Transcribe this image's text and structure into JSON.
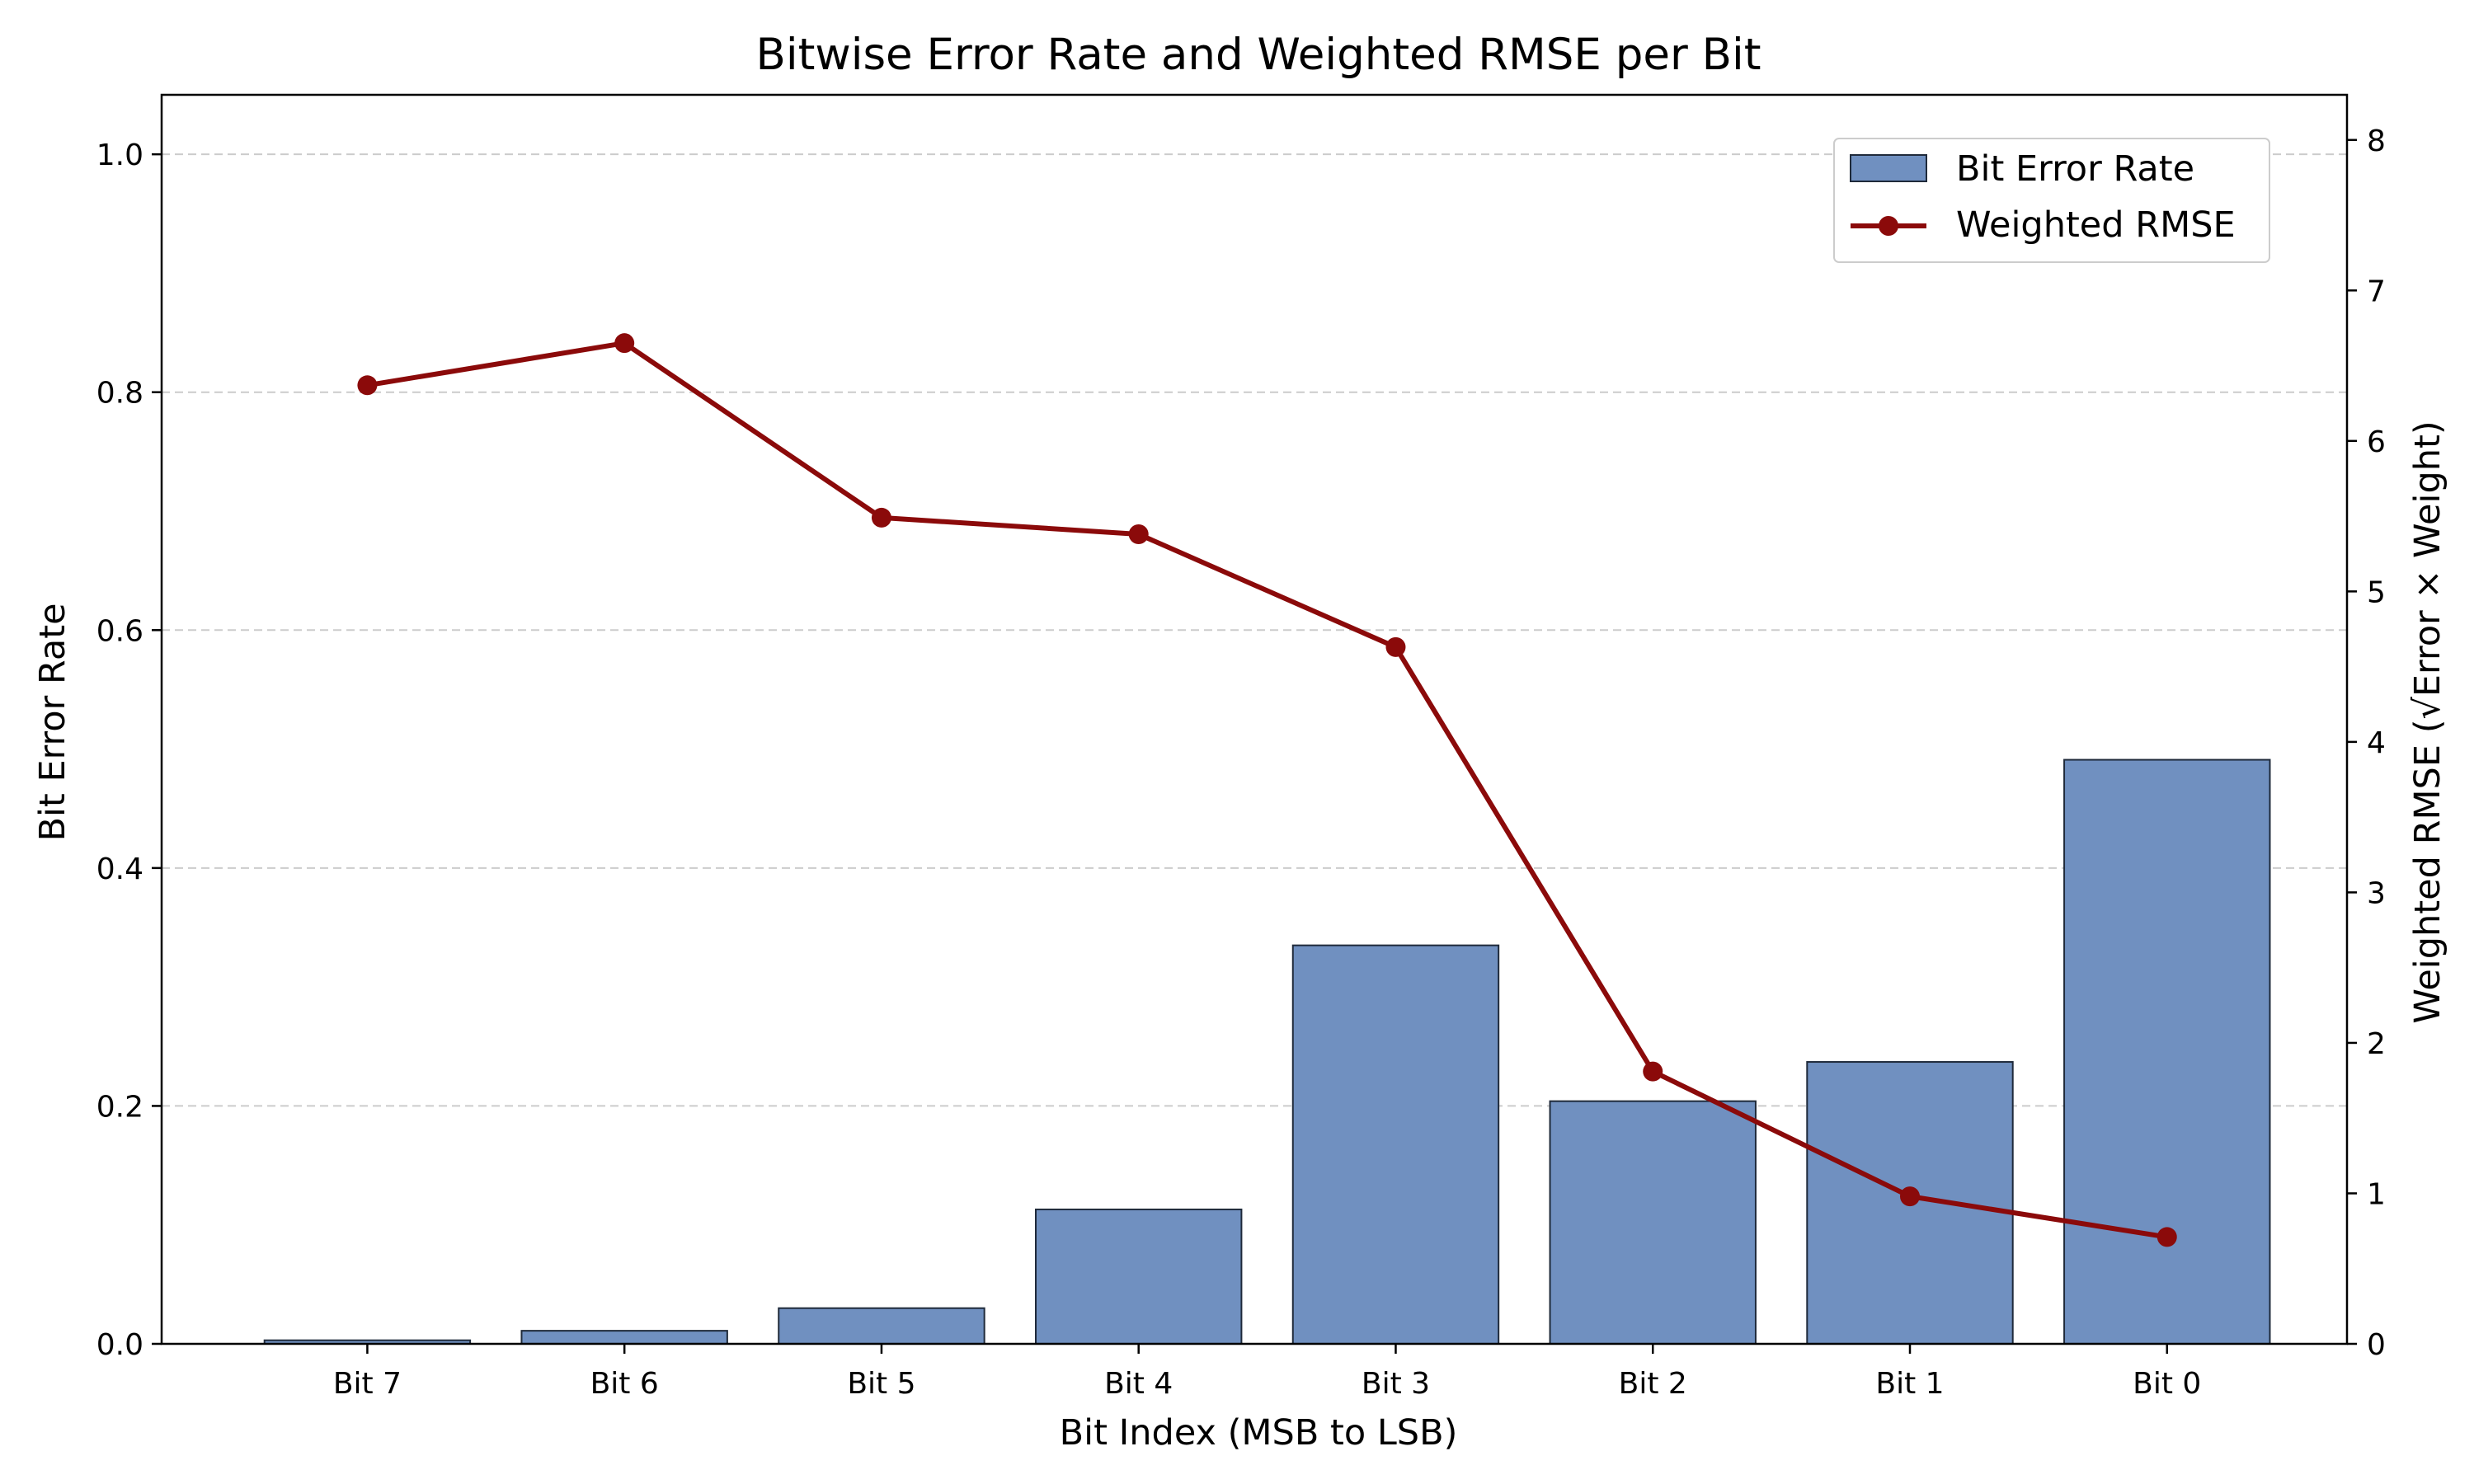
{
  "chart_data": {
    "type": "bar+line",
    "title": "Bitwise Error Rate and Weighted RMSE per Bit",
    "xlabel": "Bit Index (MSB to LSB)",
    "ylabel_left": "Bit Error Rate",
    "ylabel_right": "Weighted RMSE (√Error × Weight)",
    "categories": [
      "Bit 7",
      "Bit 6",
      "Bit 5",
      "Bit 4",
      "Bit 3",
      "Bit 2",
      "Bit 1",
      "Bit 0"
    ],
    "series": [
      {
        "name": "Bit Error Rate",
        "kind": "bar",
        "axis": "left",
        "values": [
          0.003,
          0.011,
          0.03,
          0.113,
          0.335,
          0.204,
          0.237,
          0.491
        ]
      },
      {
        "name": "Weighted RMSE",
        "kind": "line",
        "axis": "right",
        "values": [
          6.37,
          6.65,
          5.49,
          5.38,
          4.63,
          1.81,
          0.98,
          0.71
        ]
      }
    ],
    "ylim_left": [
      0,
      1.05
    ],
    "ylim_right": [
      0,
      8.3
    ],
    "yticks_left": [
      0.0,
      0.2,
      0.4,
      0.6,
      0.8,
      1.0
    ],
    "yticks_right": [
      0,
      1,
      2,
      3,
      4,
      5,
      6,
      7,
      8
    ],
    "grid": "horizontal-dashed",
    "legend": "top-right",
    "colors": {
      "bar": "#7090c0",
      "bar_edge": "#1f2a3a",
      "line": "#8b0a0a",
      "grid": "#cccccc"
    }
  }
}
